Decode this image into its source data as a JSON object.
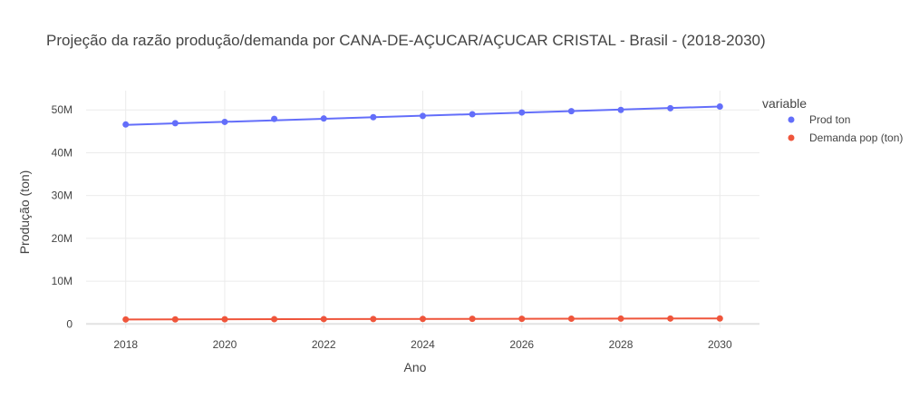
{
  "chart_data": {
    "type": "line",
    "title": "Projeção da razão produção/demanda por CANA-DE-AÇUCAR/AÇUCAR CRISTAL - Brasil - (2018-2030)",
    "xlabel": "Ano",
    "ylabel": "Produção (ton)",
    "x": [
      2018,
      2019,
      2020,
      2021,
      2022,
      2023,
      2024,
      2025,
      2026,
      2027,
      2028,
      2029,
      2030
    ],
    "x_ticks": [
      2018,
      2020,
      2022,
      2024,
      2026,
      2028,
      2030
    ],
    "y_ticks": [
      0,
      10000000,
      20000000,
      30000000,
      40000000,
      50000000
    ],
    "y_tick_labels": [
      "0",
      "10M",
      "20M",
      "30M",
      "40M",
      "50M"
    ],
    "xlim": [
      2017.2,
      2030.8
    ],
    "ylim": [
      -1000000,
      54500000
    ],
    "grid": true,
    "legend": {
      "title": "variable",
      "position": "right"
    },
    "series": [
      {
        "name": "Prod ton",
        "color": "#636efa",
        "points": [
          46600000,
          46900000,
          47200000,
          47900000,
          48000000,
          48300000,
          48600000,
          49000000,
          49400000,
          49700000,
          50000000,
          50400000,
          50800000
        ],
        "trend": [
          46500000,
          50800000
        ]
      },
      {
        "name": "Demanda pop (ton)",
        "color": "#ef553b",
        "points": [
          1050000,
          1070000,
          1090000,
          1110000,
          1130000,
          1150000,
          1170000,
          1190000,
          1200000,
          1220000,
          1240000,
          1260000,
          1280000
        ],
        "trend": [
          1050000,
          1280000
        ]
      }
    ]
  }
}
